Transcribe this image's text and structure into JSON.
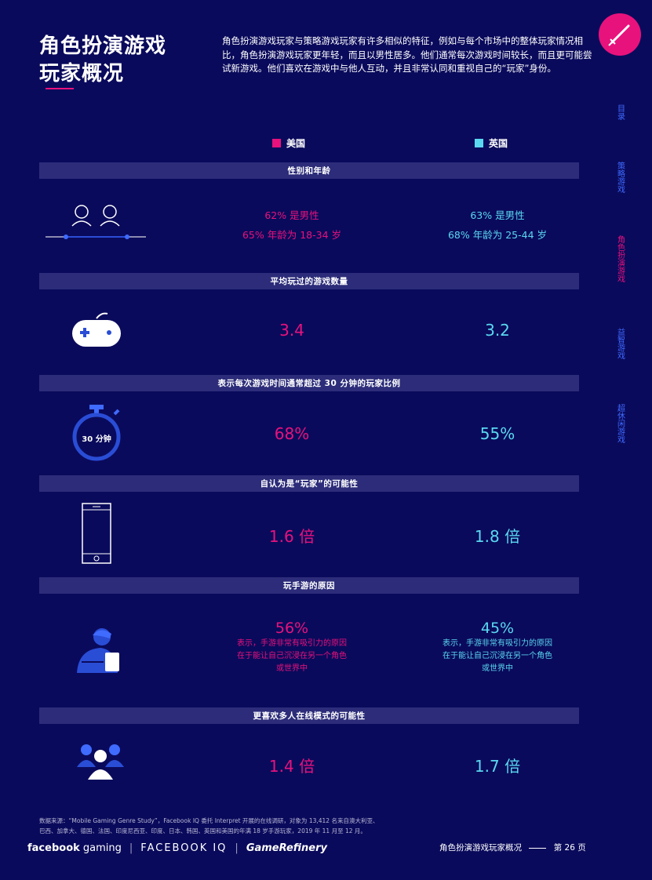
{
  "title_line1": "角色扮演游戏",
  "title_line2": "玩家概况",
  "intro": "角色扮演游戏玩家与策略游戏玩家有许多相似的特征，例如与每个市场中的整体玩家情况相比，角色扮演游戏玩家更年轻，而且以男性居多。他们通常每次游戏时间较长，而且更可能尝试新游戏。他们喜欢在游戏中与他人互动，并且非常认同和重视自己的“玩家”身份。",
  "sidenav": [
    "目录",
    "策略游戏",
    "角色扮演游戏",
    "益智游戏",
    "超休闲游戏"
  ],
  "legend": {
    "us": "美国",
    "uk": "英国",
    "us_color": "#e8127c",
    "uk_color": "#5ad8f0"
  },
  "sections": {
    "gender": {
      "title": "性别和年龄",
      "us_1": "62% 是男性",
      "us_2": "65% 年龄为 18-34 岁",
      "uk_1": "63% 是男性",
      "uk_2": "68% 年龄为 25-44 岁"
    },
    "games": {
      "title": "平均玩过的游戏数量",
      "us": "3.4",
      "uk": "3.2"
    },
    "time": {
      "title": "表示每次游戏时间通常超过 30 分钟的玩家比例",
      "icon_label": "30 分钟",
      "us": "68%",
      "uk": "55%"
    },
    "gamer": {
      "title": "自认为是“玩家”的可能性",
      "us": "1.6 倍",
      "uk": "1.8 倍"
    },
    "reason": {
      "title": "玩手游的原因",
      "us": "56%",
      "uk": "45%",
      "us_desc_1": "表示，手游非常有吸引力的原因",
      "us_desc_2": "在于能让自己沉浸在另一个角色",
      "us_desc_3": "或世界中",
      "uk_desc_1": "表示，手游非常有吸引力的原因",
      "uk_desc_2": "在于能让自己沉浸在另一个角色",
      "uk_desc_3": "或世界中"
    },
    "multi": {
      "title": "更喜欢多人在线模式的可能性",
      "us": "1.4 倍",
      "uk": "1.7 倍"
    }
  },
  "footer": {
    "source_1": "数据来源：“Mobile Gaming Genre Study”，Facebook IQ 委托 Interpret 开展的在线调研，对象为 13,412 名来自澳大利亚、",
    "source_2": "巴西、加拿大、德国、法国、印度尼西亚、印度、日本、韩国、英国和美国的年满 18 岁手游玩家，2019 年 11 月至 12 月。",
    "logo_fb": "facebook",
    "logo_gaming": "gaming",
    "logo_iq": "FACEBOOK IQ",
    "logo_gr": "GameRefinery",
    "page_label": "角色扮演游戏玩家概况",
    "page_num": "第 26 页"
  }
}
